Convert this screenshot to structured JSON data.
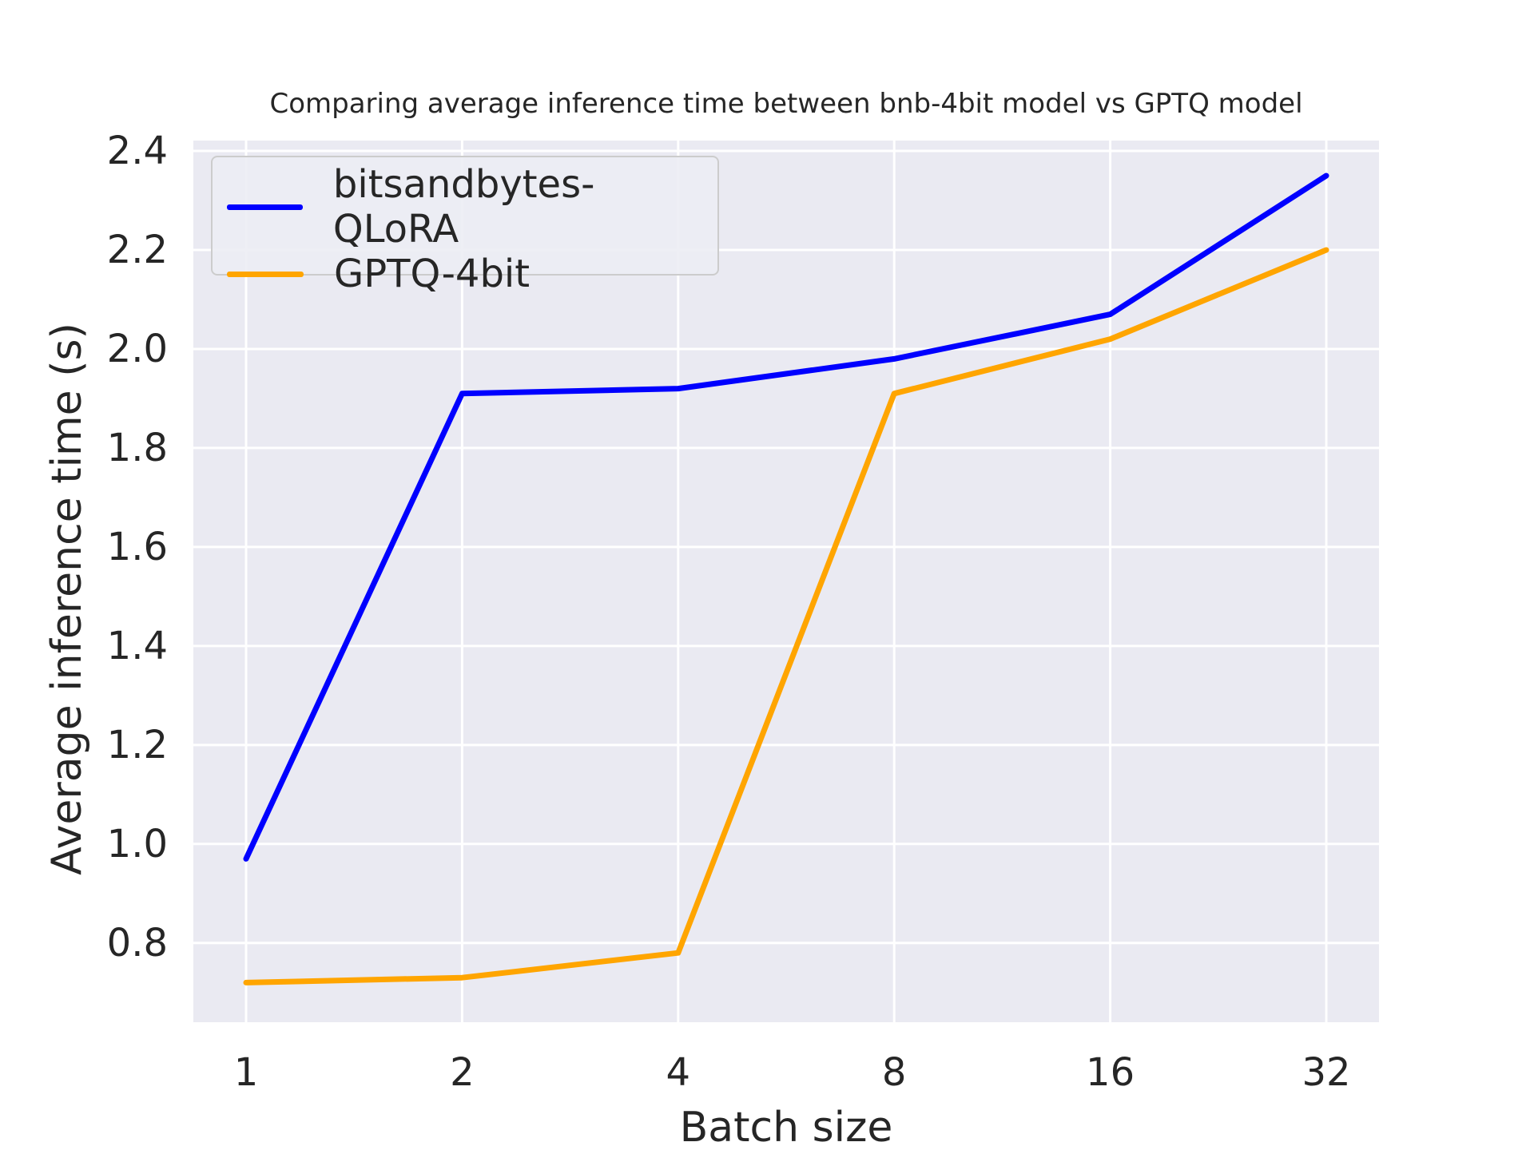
{
  "title": "Comparing average inference time between bnb-4bit model vs GPTQ model",
  "chart_data": {
    "type": "line",
    "title": "Comparing average inference time between bnb-4bit model vs GPTQ model",
    "xlabel": "Batch size",
    "ylabel": "Average inference time (s)",
    "x_scale": "log2",
    "categories": [
      1,
      2,
      4,
      8,
      16,
      32
    ],
    "series": [
      {
        "name": "bitsandbytes-QLoRA",
        "color": "#0000ff",
        "values": [
          0.97,
          1.91,
          1.92,
          1.98,
          2.07,
          2.35
        ]
      },
      {
        "name": "GPTQ-4bit",
        "color": "#ffa500",
        "values": [
          0.72,
          0.73,
          0.78,
          1.91,
          2.02,
          2.2
        ]
      }
    ],
    "y_ticks": [
      0.8,
      1.0,
      1.2,
      1.4,
      1.6,
      1.8,
      2.0,
      2.2,
      2.4
    ],
    "ylim": [
      0.64,
      2.421
    ],
    "grid": true,
    "grid_color": "#ffffff",
    "plot_bg": "#eaeaf2",
    "text_color": "#262626",
    "legend_position": "upper left",
    "line_width": 7
  }
}
